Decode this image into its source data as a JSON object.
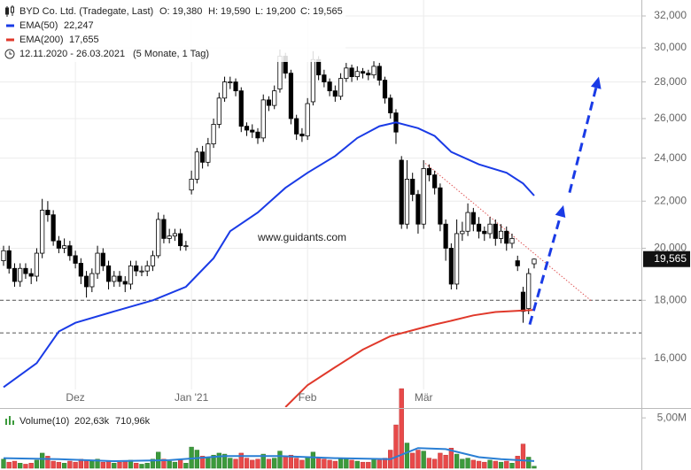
{
  "chart_data": {
    "type": "candlestick",
    "title": "BYD Co. Ltd. (Tradegate, Last)",
    "ohlc_labels": [
      "O: 19,380",
      "H: 19,590",
      "L: 19,200",
      "C: 19,565"
    ],
    "date_range": "12.11.2020 - 26.03.2021",
    "period": "(5 Monate, 1 Tag)",
    "watermark": "www.guidants.com",
    "last_label": "19,565",
    "log": true,
    "grid": true,
    "ylim": [
      14500,
      33050
    ],
    "yticks": [
      {
        "value": 16000,
        "label": "16,000"
      },
      {
        "value": 18000,
        "label": "18,000"
      },
      {
        "value": 20000,
        "label": "20,000"
      },
      {
        "value": 22000,
        "label": "22,000"
      },
      {
        "value": 24000,
        "label": "24,000"
      },
      {
        "value": 26000,
        "label": "26,000"
      },
      {
        "value": 28000,
        "label": "28,000"
      },
      {
        "value": 30000,
        "label": "30,000"
      },
      {
        "value": 32000,
        "label": "32,000"
      }
    ],
    "xlim": [
      -0.64,
      115.4
    ],
    "xticks": [
      {
        "value": 13,
        "label": "Dez"
      },
      {
        "value": 34,
        "label": "Jan '21"
      },
      {
        "value": 55,
        "label": "Feb"
      },
      {
        "value": 76,
        "label": "Mär"
      }
    ],
    "up_color": "#ffffff",
    "down_color": "#000000",
    "open": [
      19500,
      19900,
      19200,
      18700,
      19200,
      19000,
      18900,
      19800,
      21600,
      21400,
      20300,
      20000,
      20100,
      19700,
      19400,
      18900,
      18500,
      19000,
      19800,
      19300,
      18700,
      18900,
      18700,
      18600,
      19300,
      19100,
      19100,
      19300,
      19700,
      21200,
      20400,
      20500,
      20600,
      20100,
      22500,
      23000,
      24300,
      23800,
      24700,
      25700,
      27100,
      28000,
      28000,
      27500,
      25600,
      25400,
      25300,
      25000,
      27000,
      26700,
      27600,
      29500,
      28500,
      26000,
      25200,
      25100,
      26900,
      29300,
      28400,
      28000,
      27500,
      27200,
      28200,
      28800,
      28300,
      28600,
      28500,
      28400,
      28900,
      28100,
      27100,
      26300,
      23900,
      21000,
      23000,
      22300,
      21000,
      23500,
      23200,
      22600,
      21000,
      20000,
      18600,
      20600,
      20700,
      21500,
      21000,
      20700,
      20600,
      21000,
      20400,
      20700,
      20200,
      19500,
      18300,
      17700,
      19380
    ],
    "high": [
      20100,
      20100,
      19400,
      19400,
      19400,
      19200,
      20000,
      22100,
      22000,
      21600,
      20500,
      20400,
      20300,
      19900,
      19600,
      19100,
      19200,
      20100,
      20000,
      19500,
      19100,
      19100,
      18900,
      19500,
      19500,
      19300,
      19500,
      19900,
      21500,
      21400,
      20800,
      20800,
      20800,
      20300,
      23400,
      24500,
      24600,
      25000,
      26000,
      27400,
      28300,
      28300,
      28200,
      27700,
      25800,
      25700,
      25500,
      27300,
      27200,
      27800,
      29900,
      29700,
      28700,
      26200,
      25500,
      27100,
      29800,
      29500,
      28700,
      28200,
      27800,
      28500,
      29100,
      29000,
      28900,
      28800,
      28700,
      29200,
      29100,
      28300,
      27300,
      26500,
      24100,
      23900,
      23300,
      22500,
      23900,
      23700,
      23400,
      22800,
      21200,
      20200,
      21200,
      21100,
      21900,
      21700,
      21300,
      20900,
      21300,
      21200,
      21000,
      20900,
      20600,
      19700,
      18500,
      19200,
      19590
    ],
    "low": [
      19300,
      19000,
      18500,
      18500,
      18800,
      18600,
      18700,
      19600,
      21100,
      20100,
      19800,
      19800,
      19500,
      19200,
      18600,
      18100,
      18300,
      18800,
      19100,
      18400,
      18500,
      18500,
      18300,
      18400,
      18900,
      18900,
      18900,
      19100,
      19600,
      20200,
      20200,
      20300,
      19900,
      19900,
      22300,
      22800,
      23500,
      23600,
      24500,
      25500,
      26900,
      27600,
      27200,
      25300,
      25100,
      25000,
      24700,
      24800,
      26400,
      26500,
      27400,
      28200,
      25700,
      24900,
      24800,
      24900,
      26700,
      28100,
      27700,
      27200,
      26900,
      27000,
      28000,
      28000,
      28100,
      28200,
      28100,
      28200,
      27800,
      26800,
      26000,
      24700,
      20800,
      20800,
      22000,
      20600,
      20800,
      22900,
      22300,
      20700,
      19500,
      18400,
      18400,
      20300,
      20500,
      20700,
      20400,
      20300,
      20400,
      20100,
      20200,
      19900,
      20000,
      19100,
      17200,
      17500,
      19200
    ],
    "close": [
      19900,
      19200,
      18700,
      19200,
      19000,
      18900,
      19800,
      21600,
      21400,
      20300,
      20000,
      20100,
      19700,
      19400,
      18900,
      18500,
      19000,
      19800,
      19300,
      18700,
      18900,
      18700,
      18600,
      19300,
      19100,
      19100,
      19300,
      19700,
      21200,
      20400,
      20500,
      20600,
      20100,
      20100,
      23000,
      24300,
      23800,
      24700,
      25700,
      27100,
      28000,
      28000,
      27500,
      25600,
      25400,
      25300,
      25000,
      27000,
      26700,
      27500,
      29500,
      28500,
      26000,
      25200,
      25100,
      26800,
      29300,
      28400,
      28000,
      27500,
      27200,
      28200,
      28800,
      28300,
      28600,
      28500,
      28400,
      28900,
      28100,
      27100,
      26300,
      25300,
      21000,
      23000,
      22300,
      21000,
      23500,
      23200,
      22600,
      21000,
      20000,
      18600,
      20600,
      20700,
      21500,
      21000,
      20700,
      20600,
      21000,
      20400,
      20700,
      20200,
      20400,
      19300,
      17600,
      19000,
      19565
    ],
    "lines": [
      {
        "name": "EMA(50)",
        "color": "#1a3be6",
        "last_label": "22,247",
        "x": [
          0,
          6,
          10,
          13,
          20,
          27,
          33,
          38,
          41,
          46,
          51,
          55,
          60,
          64,
          68,
          71,
          75,
          78,
          81,
          86,
          91,
          94,
          96
        ],
        "values": [
          15100,
          15850,
          16900,
          17200,
          17600,
          18000,
          18500,
          19600,
          20700,
          21500,
          22600,
          23300,
          24100,
          25000,
          25600,
          25800,
          25500,
          25100,
          24300,
          23700,
          23300,
          22800,
          22247
        ]
      },
      {
        "name": "EMA(200)",
        "color": "#e0392b",
        "last_label": "17,655",
        "x": [
          51,
          55,
          60,
          65,
          70,
          75,
          78,
          81,
          85,
          89,
          92,
          96
        ],
        "values": [
          14500,
          15160,
          15720,
          16290,
          16740,
          16990,
          17140,
          17270,
          17460,
          17580,
          17610,
          17655
        ]
      }
    ],
    "levels": [
      18000,
      16850
    ],
    "trendline": {
      "color": "#e05a5a",
      "x": [
        76.3,
        106.4
      ],
      "values": [
        23750,
        17970
      ]
    },
    "arrows": {
      "color": "#1a3be6",
      "items": [
        {
          "x": [
            95.2,
            101.3
          ],
          "values": [
            17140,
            21820
          ]
        },
        {
          "x": [
            102.4,
            107.7
          ],
          "values": [
            22380,
            28300
          ]
        }
      ]
    },
    "volume": {
      "name": "Volume(10)",
      "last_label": "202,63k",
      "ma_label": "710,96k",
      "up_color": "#3c9a3c",
      "down_color": "#e84a4a",
      "ma_color": "#2a7fd4",
      "ylim": [
        0,
        5800000
      ],
      "yticks": [
        {
          "value": 5000000,
          "label": "5,00M"
        }
      ],
      "values": [
        900000,
        600000,
        700000,
        500000,
        400000,
        500000,
        800000,
        1500000,
        1200000,
        700000,
        600000,
        500000,
        700000,
        600000,
        900000,
        800000,
        700000,
        900000,
        600000,
        700000,
        500000,
        600000,
        700000,
        800000,
        500000,
        400000,
        500000,
        900000,
        1600000,
        900000,
        700000,
        600000,
        800000,
        500000,
        2100000,
        1800000,
        1200000,
        1000000,
        1300000,
        1500000,
        1400000,
        1000000,
        900000,
        1500000,
        1000000,
        800000,
        900000,
        1400000,
        900000,
        1000000,
        1700000,
        1200000,
        1300000,
        1000000,
        800000,
        1100000,
        1600000,
        1000000,
        900000,
        800000,
        700000,
        900000,
        1000000,
        800000,
        700000,
        600000,
        600000,
        900000,
        800000,
        1000000,
        1800000,
        4300000,
        7900000,
        2500000,
        1500000,
        1800000,
        1700000,
        1000000,
        900000,
        1500000,
        1300000,
        2000000,
        1400000,
        900000,
        1000000,
        800000,
        700000,
        600000,
        800000,
        700000,
        600000,
        700000,
        500000,
        1200000,
        2400000,
        1100000,
        202630
      ],
      "ma": {
        "x": [
          0,
          10,
          20,
          30,
          40,
          50,
          60,
          70,
          75,
          80,
          86,
          90,
          96
        ],
        "values": [
          1000000,
          900000,
          700000,
          800000,
          1200000,
          1200000,
          1000000,
          900000,
          2000000,
          1900000,
          1100000,
          900000,
          710960
        ]
      }
    }
  }
}
